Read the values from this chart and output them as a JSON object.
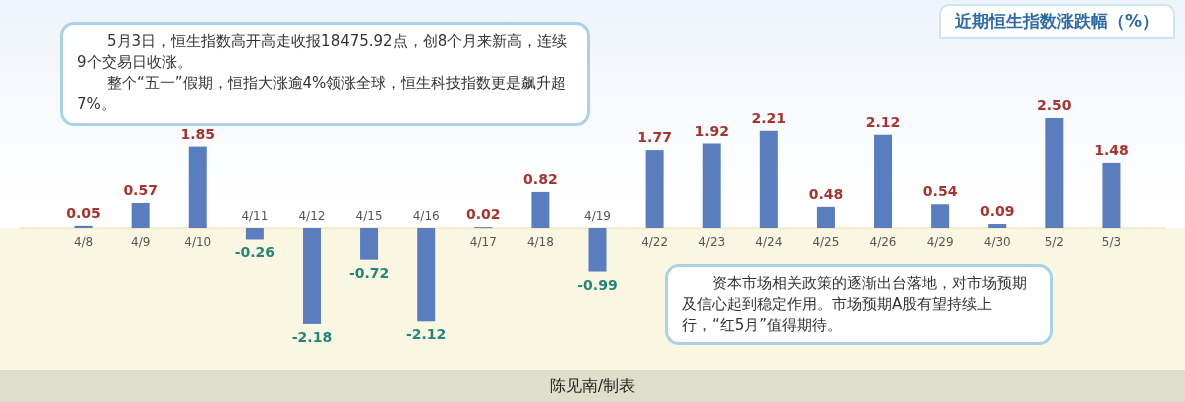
{
  "chart_data": {
    "type": "bar",
    "title": "近期恒生指数涨跌幅（%）",
    "categories": [
      "4/8",
      "4/9",
      "4/10",
      "4/11",
      "4/12",
      "4/15",
      "4/16",
      "4/17",
      "4/18",
      "4/19",
      "4/22",
      "4/23",
      "4/24",
      "4/25",
      "4/26",
      "4/29",
      "4/30",
      "5/2",
      "5/3"
    ],
    "values": [
      0.05,
      0.57,
      1.85,
      -0.26,
      -2.18,
      -0.72,
      -2.12,
      0.02,
      0.82,
      -0.99,
      1.77,
      1.92,
      2.21,
      0.48,
      2.12,
      0.54,
      0.09,
      2.5,
      1.48
    ],
    "value_labels": [
      "0.05",
      "0.57",
      "1.85",
      "-0.26",
      "-2.18",
      "-0.72",
      "-2.12",
      "0.02",
      "0.82",
      "-0.99",
      "1.77",
      "1.92",
      "2.21",
      "0.48",
      "2.12",
      "0.54",
      "0.09",
      "2.50",
      "1.48"
    ],
    "color": "#5a7dbd",
    "annotations": [
      "5月3日，恒生指数高开高走收报18475.92点，创8个月来新高，连续9个交易日收涨。",
      "整个“五一”假期，恒指大涨逾4%领涨全球，恒生科技指数更是飙升超7%。",
      "资本市场相关政策的逐渐出台落地，对市场预期及信心起到稳定作用。市场预期A股有望持续上行，“红5月”值得期待。",
      "陈见南/制表"
    ]
  }
}
